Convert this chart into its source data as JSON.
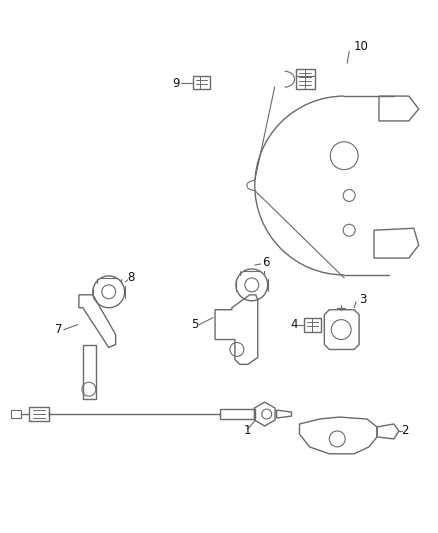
{
  "background_color": "#ffffff",
  "line_color": "#6a6a6a",
  "label_color": "#111111",
  "fig_width": 4.38,
  "fig_height": 5.33,
  "dpi": 100,
  "label_fontsize": 8.5
}
